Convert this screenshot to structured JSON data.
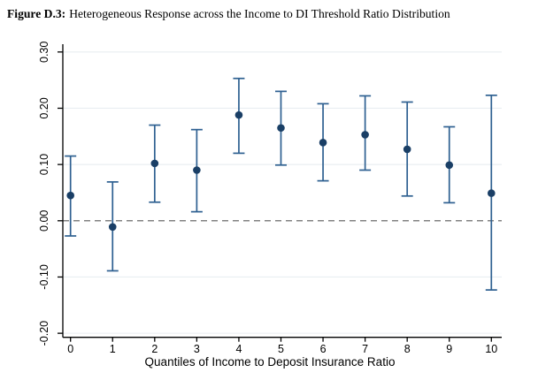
{
  "figure": {
    "label": "Figure D.3:",
    "title": "Heterogeneous Response across the Income to DI Threshold Ratio Distribution"
  },
  "chart_data": {
    "type": "scatter",
    "variant": "coefficient-plot-with-confidence-intervals",
    "title": "Figure D.3: Heterogeneous Response across the Income to DI Threshold Ratio Distribution",
    "xlabel": "Quantiles of Income to Deposit Insurance Ratio",
    "ylabel": "",
    "x": [
      0,
      1,
      2,
      3,
      4,
      5,
      6,
      7,
      8,
      9,
      10
    ],
    "x_tick_labels": [
      "0",
      "1",
      "2",
      "3",
      "4",
      "5",
      "6",
      "7",
      "8",
      "9",
      "10"
    ],
    "estimates": [
      0.045,
      -0.011,
      0.102,
      0.09,
      0.188,
      0.165,
      0.139,
      0.153,
      0.127,
      0.099,
      0.049
    ],
    "ci_high": [
      0.115,
      0.069,
      0.17,
      0.162,
      0.253,
      0.23,
      0.208,
      0.222,
      0.211,
      0.167,
      0.223
    ],
    "ci_low": [
      -0.027,
      -0.089,
      0.033,
      0.016,
      0.12,
      0.099,
      0.071,
      0.09,
      0.044,
      0.032,
      -0.123
    ],
    "y_tick_values": [
      -0.2,
      -0.1,
      0.0,
      0.1,
      0.2,
      0.3
    ],
    "y_tick_labels": [
      "-0.20",
      "-0.10",
      "0.00",
      "0.10",
      "0.20",
      "0.30"
    ],
    "grid_values": [
      0.3,
      0.2,
      0.1,
      -0.1,
      -0.2
    ],
    "zero_line_value": 0.0,
    "ylim": [
      -0.207,
      0.314
    ],
    "xlim": [
      -0.18,
      10.25
    ],
    "grid": "horizontal-light",
    "legend": "none",
    "colors": {
      "marker": "#1a3f66",
      "ci_bar": "#2e6091",
      "grid": "#e9eef1",
      "zero_line": "#595959",
      "axis": "#000000",
      "background": "#ffffff"
    }
  }
}
